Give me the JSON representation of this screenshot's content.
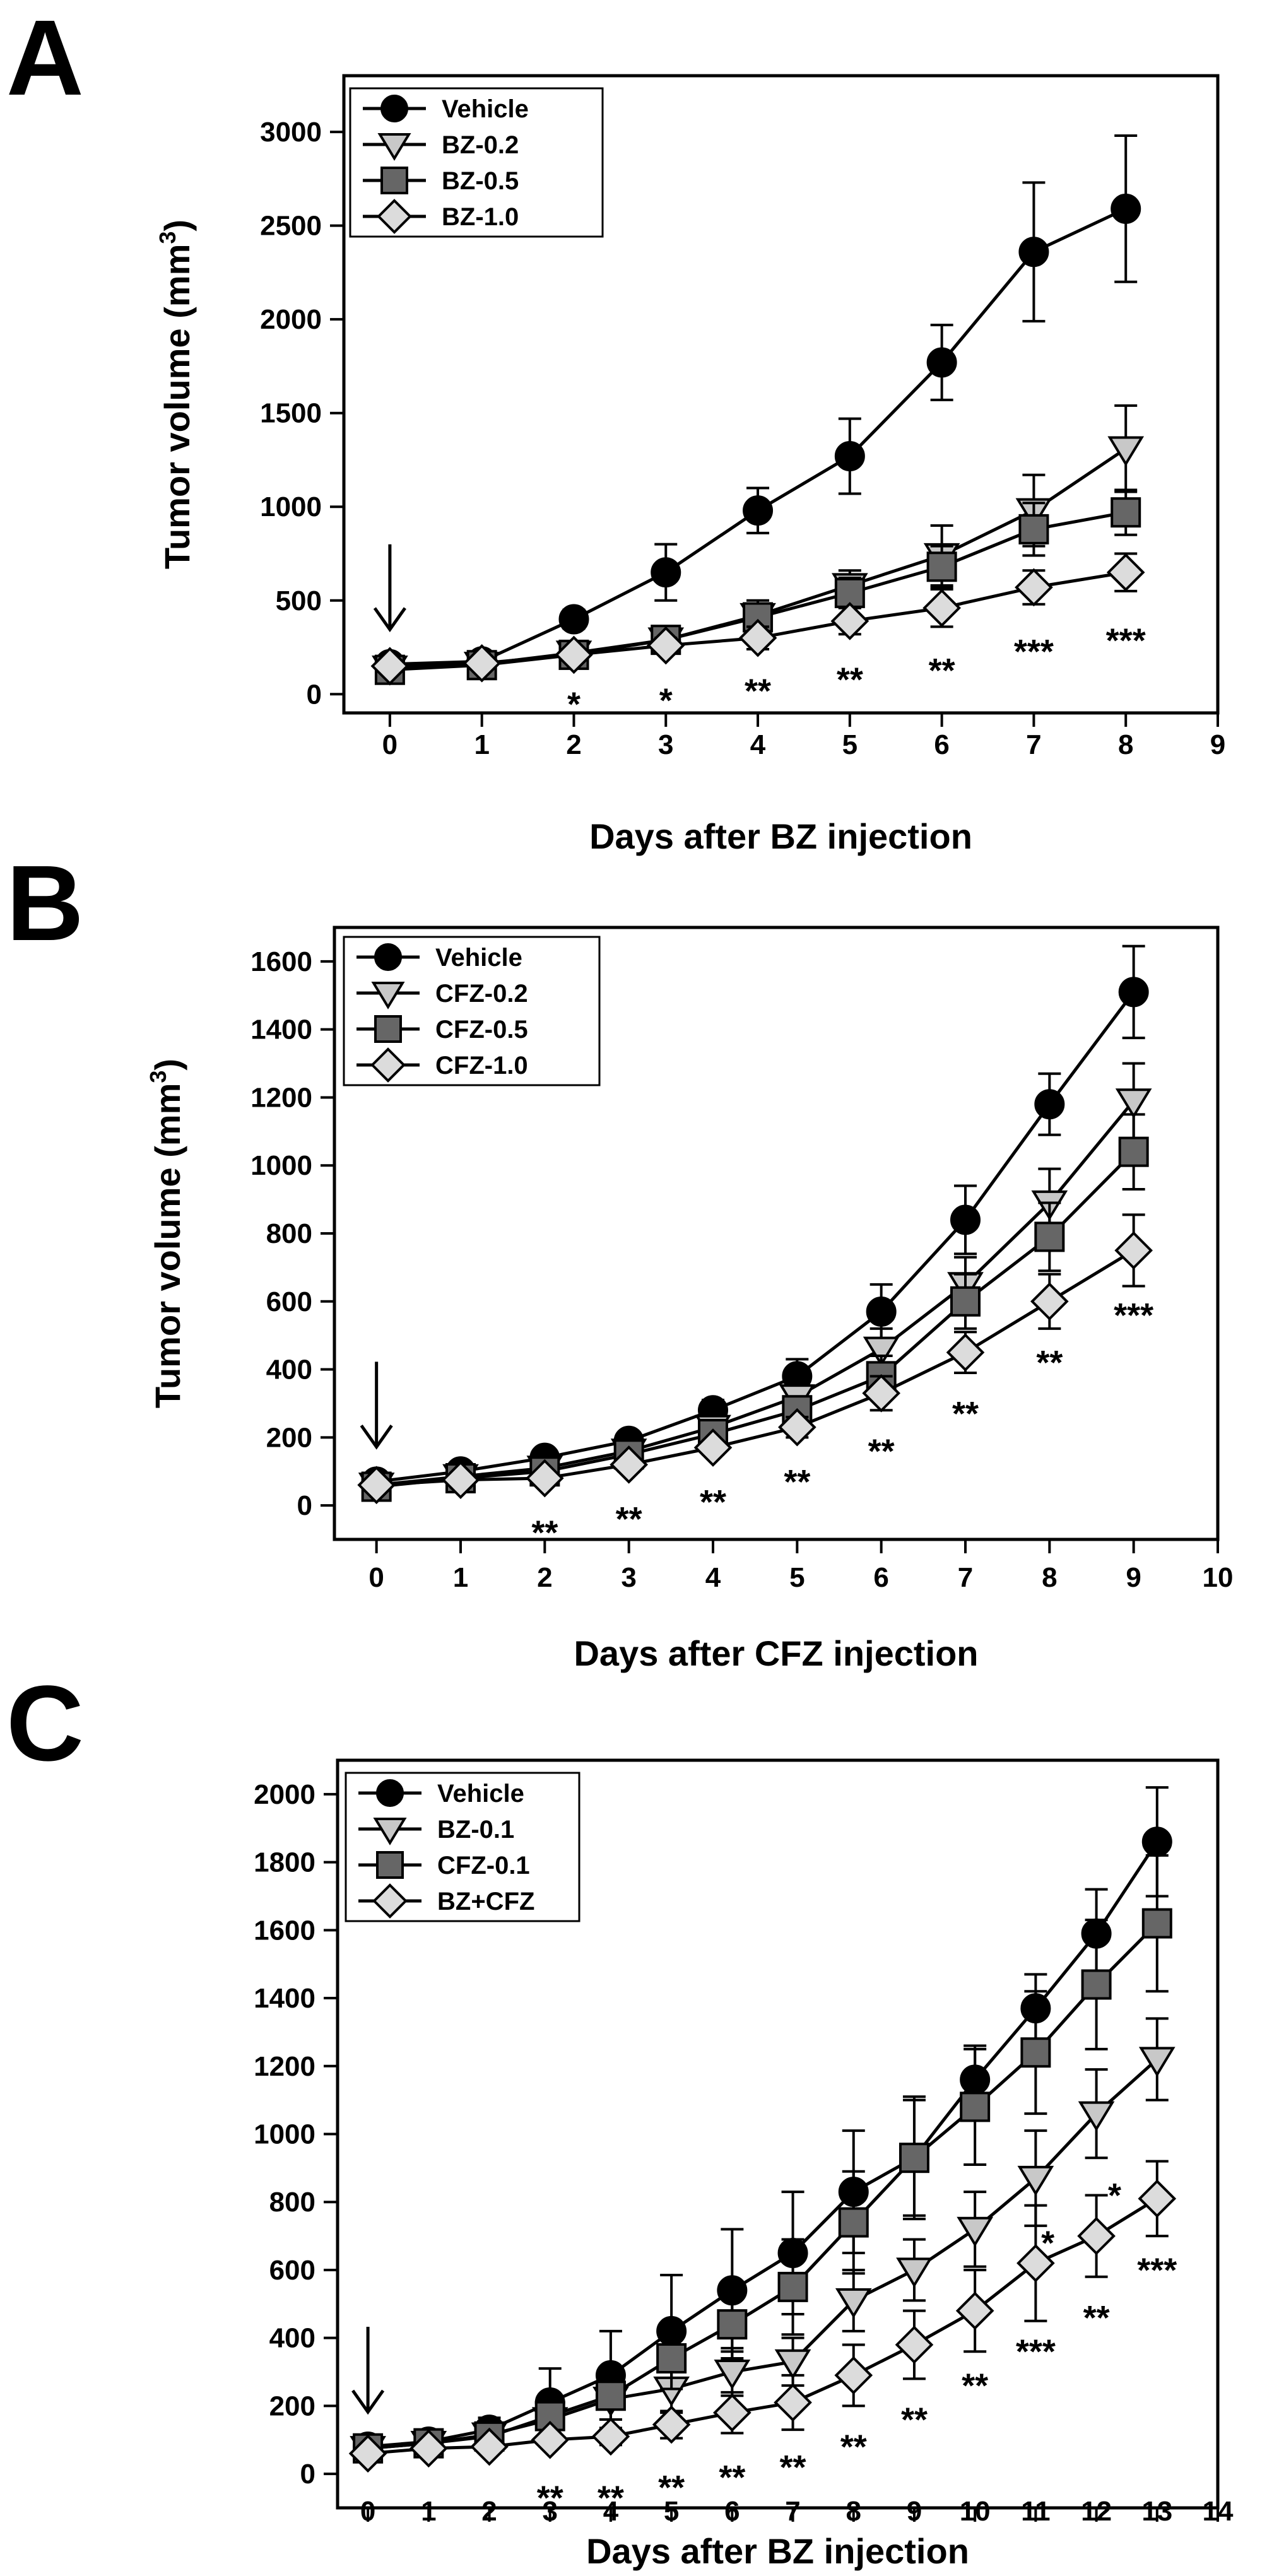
{
  "chart_data": [
    {
      "panel": "A",
      "type": "line",
      "title": "",
      "xlabel": "Days after BZ injection",
      "ylabel": "Tumor volume (mm",
      "ylabel_sup": "3",
      "ylabel_close": ")",
      "xlim": [
        -0.5,
        9
      ],
      "ylim": [
        -100,
        3300
      ],
      "xticks": [
        0,
        1,
        2,
        3,
        4,
        5,
        6,
        7,
        8,
        9
      ],
      "yticks": [
        0,
        500,
        1000,
        1500,
        2000,
        2500,
        3000
      ],
      "arrow_day": 0,
      "x": [
        0,
        1,
        2,
        3,
        4,
        5,
        6,
        7,
        8
      ],
      "series": [
        {
          "name": "Vehicle",
          "marker": "circle",
          "color": "#000000",
          "values": [
            160,
            175,
            400,
            650,
            980,
            1270,
            1770,
            2360,
            2590
          ],
          "errors": [
            20,
            30,
            50,
            150,
            120,
            200,
            200,
            370,
            390
          ]
        },
        {
          "name": "BZ-0.2",
          "marker": "triangle",
          "color": "#c8c8c8",
          "values": [
            140,
            160,
            220,
            290,
            420,
            580,
            740,
            980,
            1310
          ],
          "errors": [
            20,
            25,
            30,
            40,
            80,
            80,
            160,
            190,
            230
          ]
        },
        {
          "name": "BZ-0.5",
          "marker": "square",
          "color": "#666666",
          "values": [
            130,
            155,
            210,
            290,
            410,
            540,
            680,
            880,
            970
          ],
          "errors": [
            20,
            25,
            30,
            40,
            70,
            80,
            110,
            140,
            120
          ]
        },
        {
          "name": "BZ-1.0",
          "marker": "diamond",
          "color": "#dcdcdc",
          "values": [
            150,
            165,
            210,
            260,
            300,
            390,
            460,
            570,
            650
          ],
          "errors": [
            20,
            25,
            30,
            40,
            60,
            70,
            100,
            90,
            100
          ]
        }
      ],
      "significance": [
        {
          "x": 2,
          "label": "*",
          "y": 20
        },
        {
          "x": 3,
          "label": "*",
          "y": 40
        },
        {
          "x": 4,
          "label": "**",
          "y": 90
        },
        {
          "x": 5,
          "label": "**",
          "y": 150
        },
        {
          "x": 6,
          "label": "**",
          "y": 200
        },
        {
          "x": 7,
          "label": "***",
          "y": 300
        },
        {
          "x": 8,
          "label": "***",
          "y": 360
        }
      ],
      "legend_position": "top-left"
    },
    {
      "panel": "B",
      "type": "line",
      "title": "",
      "xlabel": "Days after CFZ injection",
      "ylabel": "Tumor volume (mm",
      "ylabel_sup": "3",
      "ylabel_close": ")",
      "xlim": [
        -0.5,
        10
      ],
      "ylim": [
        -100,
        1700
      ],
      "xticks": [
        0,
        1,
        2,
        3,
        4,
        5,
        6,
        7,
        8,
        9,
        10
      ],
      "yticks": [
        0,
        200,
        400,
        600,
        800,
        1000,
        1200,
        1400,
        1600
      ],
      "arrow_day": 0,
      "x": [
        0,
        1,
        2,
        3,
        4,
        5,
        6,
        7,
        8,
        9
      ],
      "series": [
        {
          "name": "Vehicle",
          "marker": "circle",
          "color": "#000000",
          "values": [
            70,
            100,
            140,
            190,
            280,
            380,
            570,
            840,
            1180,
            1510
          ],
          "errors": [
            10,
            15,
            20,
            20,
            30,
            50,
            80,
            100,
            90,
            135
          ]
        },
        {
          "name": "CFZ-0.2",
          "marker": "triangle",
          "color": "#c8c8c8",
          "values": [
            60,
            85,
            110,
            160,
            230,
            320,
            460,
            650,
            890,
            1190
          ],
          "errors": [
            10,
            15,
            15,
            20,
            25,
            40,
            60,
            80,
            100,
            110
          ]
        },
        {
          "name": "CFZ-0.5",
          "marker": "square",
          "color": "#666666",
          "values": [
            55,
            80,
            100,
            150,
            210,
            280,
            380,
            600,
            790,
            1040
          ],
          "errors": [
            10,
            15,
            15,
            20,
            25,
            40,
            60,
            80,
            100,
            110
          ]
        },
        {
          "name": "CFZ-1.0",
          "marker": "diamond",
          "color": "#dcdcdc",
          "values": [
            60,
            75,
            80,
            120,
            170,
            230,
            330,
            450,
            600,
            750
          ],
          "errors": [
            10,
            15,
            15,
            20,
            20,
            30,
            50,
            60,
            80,
            105
          ]
        }
      ],
      "significance": [
        {
          "x": 2,
          "label": "**",
          "y": -40
        },
        {
          "x": 3,
          "label": "**",
          "y": 0
        },
        {
          "x": 4,
          "label": "**",
          "y": 50
        },
        {
          "x": 5,
          "label": "**",
          "y": 110
        },
        {
          "x": 6,
          "label": "**",
          "y": 200
        },
        {
          "x": 7,
          "label": "**",
          "y": 310
        },
        {
          "x": 8,
          "label": "**",
          "y": 460
        },
        {
          "x": 9,
          "label": "***",
          "y": 600
        }
      ],
      "legend_position": "top-left"
    },
    {
      "panel": "C",
      "type": "line",
      "title": "",
      "xlabel": "Days after BZ injection",
      "ylabel": "",
      "xlim": [
        -0.5,
        14
      ],
      "ylim": [
        -100,
        2100
      ],
      "xticks": [
        0,
        1,
        2,
        3,
        4,
        5,
        6,
        7,
        8,
        9,
        10,
        11,
        12,
        13,
        14
      ],
      "yticks": [
        0,
        200,
        400,
        600,
        800,
        1000,
        1200,
        1400,
        1600,
        1800,
        2000
      ],
      "arrow_day": 0,
      "x": [
        0,
        1,
        2,
        3,
        4,
        5,
        6,
        7,
        8,
        9,
        10,
        11,
        12,
        13
      ],
      "series": [
        {
          "name": "Vehicle",
          "marker": "circle",
          "color": "#000000",
          "values": [
            80,
            95,
            130,
            210,
            290,
            420,
            540,
            650,
            830,
            930,
            1160,
            1370,
            1590,
            1860
          ],
          "errors": [
            15,
            20,
            35,
            100,
            130,
            165,
            180,
            180,
            180,
            180,
            100,
            100,
            130,
            160
          ]
        },
        {
          "name": "BZ-0.1",
          "marker": "triangle",
          "color": "#c8c8c8",
          "values": [
            75,
            90,
            115,
            160,
            220,
            250,
            300,
            330,
            510,
            600,
            720,
            870,
            1060,
            1220
          ],
          "errors": [
            15,
            20,
            25,
            40,
            60,
            70,
            70,
            70,
            90,
            90,
            110,
            140,
            130,
            120
          ]
        },
        {
          "name": "CFZ-0.1",
          "marker": "square",
          "color": "#666666",
          "values": [
            75,
            90,
            110,
            170,
            230,
            340,
            440,
            550,
            740,
            930,
            1080,
            1240,
            1440,
            1620
          ],
          "errors": [
            15,
            20,
            25,
            50,
            70,
            90,
            100,
            140,
            150,
            170,
            170,
            180,
            190,
            200
          ]
        },
        {
          "name": "BZ+CFZ",
          "marker": "diamond",
          "color": "#dcdcdc",
          "values": [
            60,
            75,
            80,
            100,
            110,
            145,
            180,
            210,
            290,
            380,
            480,
            620,
            700,
            810
          ],
          "errors": [
            10,
            15,
            15,
            20,
            25,
            40,
            60,
            80,
            90,
            100,
            120,
            170,
            120,
            110
          ]
        }
      ],
      "significance": [
        {
          "x": 3,
          "label": "**",
          "y": -30
        },
        {
          "x": 4,
          "label": "**",
          "y": -30
        },
        {
          "x": 5,
          "label": "**",
          "y": 0
        },
        {
          "x": 6,
          "label": "**",
          "y": 30
        },
        {
          "x": 7,
          "label": "**",
          "y": 60
        },
        {
          "x": 8,
          "label": "**",
          "y": 120
        },
        {
          "x": 9,
          "label": "**",
          "y": 200
        },
        {
          "x": 10,
          "label": "**",
          "y": 300
        },
        {
          "x": 11,
          "label": "***",
          "y": 400
        },
        {
          "x": 12,
          "label": "**",
          "y": 500
        },
        {
          "x": 12.3,
          "label": "*",
          "y": 860
        },
        {
          "x": 11.2,
          "label": "*",
          "y": 720
        },
        {
          "x": 13,
          "label": "***",
          "y": 640
        }
      ],
      "legend_position": "top-left"
    }
  ]
}
